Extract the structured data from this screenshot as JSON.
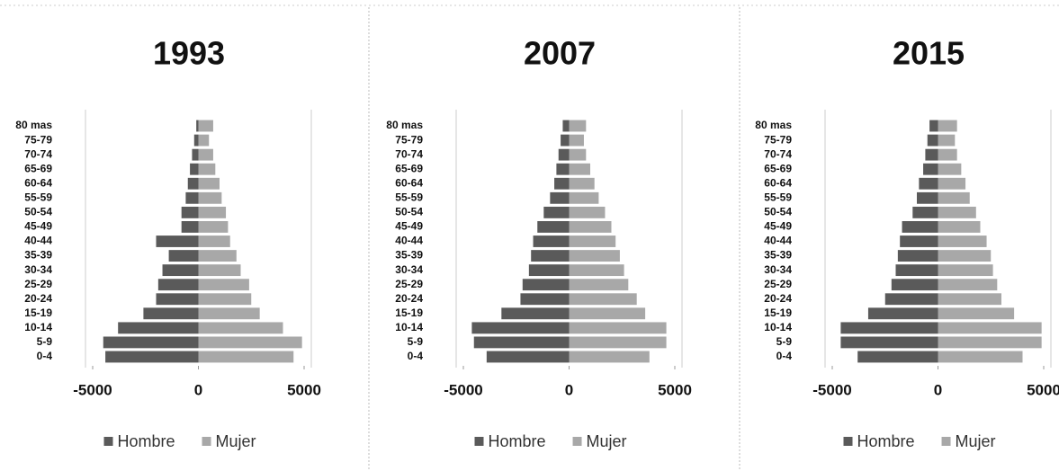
{
  "chart_data": [
    {
      "type": "pyramid",
      "title": "1993",
      "categories": [
        "0-4",
        "5-9",
        "10-14",
        "15-19",
        "20-24",
        "25-29",
        "30-34",
        "35-39",
        "40-44",
        "45-49",
        "50-54",
        "55-59",
        "60-64",
        "65-69",
        "70-74",
        "75-79",
        "80 mas"
      ],
      "series": [
        {
          "name": "Hombre",
          "color": "#5a5a5a",
          "values": [
            -4400,
            -4500,
            -3800,
            -2600,
            -2000,
            -1900,
            -1700,
            -1400,
            -2000,
            -800,
            -800,
            -600,
            -500,
            -400,
            -300,
            -200,
            -100
          ]
        },
        {
          "name": "Mujer",
          "color": "#a8a8a8",
          "values": [
            4500,
            4900,
            4000,
            2900,
            2500,
            2400,
            2000,
            1800,
            1500,
            1400,
            1300,
            1100,
            1000,
            800,
            700,
            500,
            700
          ]
        }
      ],
      "xlim": [
        -5000,
        5000
      ],
      "xticks": [
        -5000,
        0,
        5000
      ]
    },
    {
      "type": "pyramid",
      "title": "2007",
      "categories": [
        "0-4",
        "5-9",
        "10-14",
        "15-19",
        "20-24",
        "25-29",
        "30-34",
        "35-39",
        "40-44",
        "45-49",
        "50-54",
        "55-59",
        "60-64",
        "65-69",
        "70-74",
        "75-79",
        "80 mas"
      ],
      "series": [
        {
          "name": "Hombre",
          "color": "#5a5a5a",
          "values": [
            -3900,
            -4500,
            -4600,
            -3200,
            -2300,
            -2200,
            -1900,
            -1800,
            -1700,
            -1500,
            -1200,
            -900,
            -700,
            -600,
            -500,
            -400,
            -300
          ]
        },
        {
          "name": "Mujer",
          "color": "#a8a8a8",
          "values": [
            3800,
            4600,
            4600,
            3600,
            3200,
            2800,
            2600,
            2400,
            2200,
            2000,
            1700,
            1400,
            1200,
            1000,
            800,
            700,
            800
          ]
        }
      ],
      "xlim": [
        -5000,
        5000
      ],
      "xticks": [
        -5000,
        0,
        5000
      ]
    },
    {
      "type": "pyramid",
      "title": "2015",
      "categories": [
        "0-4",
        "5-9",
        "10-14",
        "15-19",
        "20-24",
        "25-29",
        "30-34",
        "35-39",
        "40-44",
        "45-49",
        "50-54",
        "55-59",
        "60-64",
        "65-69",
        "70-74",
        "75-79",
        "80 mas"
      ],
      "series": [
        {
          "name": "Hombre",
          "color": "#5a5a5a",
          "values": [
            -3800,
            -4600,
            -4600,
            -3300,
            -2500,
            -2200,
            -2000,
            -1900,
            -1800,
            -1700,
            -1200,
            -1000,
            -900,
            -700,
            -600,
            -500,
            -400
          ]
        },
        {
          "name": "Mujer",
          "color": "#a8a8a8",
          "values": [
            4000,
            4900,
            4900,
            3600,
            3000,
            2800,
            2600,
            2500,
            2300,
            2000,
            1800,
            1500,
            1300,
            1100,
            900,
            800,
            900
          ]
        }
      ],
      "xlim": [
        -5000,
        5000
      ],
      "xticks": [
        -5000,
        0,
        5000
      ]
    }
  ]
}
